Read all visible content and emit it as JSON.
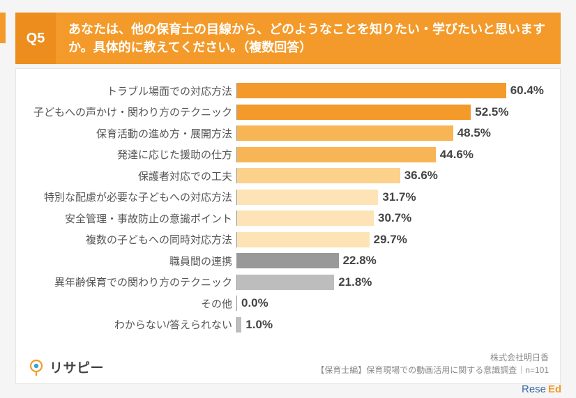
{
  "header": {
    "badge": "Q5",
    "question": "あなたは、他の保育士の目線から、どのようなことを知りたい・学びたいと思いますか。具体的に教えてください。（複数回答）"
  },
  "chart": {
    "type": "bar",
    "orientation": "horizontal",
    "xlim_max": 70,
    "axis_color": "#999999",
    "label_fontsize": 15,
    "label_color": "#555555",
    "value_fontsize": 17,
    "value_color": "#444444",
    "background_color": "#ffffff",
    "color_tiers": {
      "tier1": "#f39a2a",
      "tier2": "#f7b556",
      "tier3": "#fbd18b",
      "tier4": "#fde3b5",
      "tier5": "#999999",
      "tier6": "#bdbdbd"
    },
    "items": [
      {
        "label": "トラブル場面での対応方法",
        "value": 60.4,
        "color": "#f39a2a"
      },
      {
        "label": "子どもへの声かけ・関わり方のテクニック",
        "value": 52.5,
        "color": "#f39a2a"
      },
      {
        "label": "保育活動の進め方・展開方法",
        "value": 48.5,
        "color": "#f7b556"
      },
      {
        "label": "発達に応じた援助の仕方",
        "value": 44.6,
        "color": "#f7b556"
      },
      {
        "label": "保護者対応での工夫",
        "value": 36.6,
        "color": "#fbd18b"
      },
      {
        "label": "特別な配慮が必要な子どもへの対応方法",
        "value": 31.7,
        "color": "#fde3b5"
      },
      {
        "label": "安全管理・事故防止の意識ポイント",
        "value": 30.7,
        "color": "#fde3b5"
      },
      {
        "label": "複数の子どもへの同時対応方法",
        "value": 29.7,
        "color": "#fde3b5"
      },
      {
        "label": "職員間の連携",
        "value": 22.8,
        "color": "#999999"
      },
      {
        "label": "異年齢保育での関わり方のテクニック",
        "value": 21.8,
        "color": "#bdbdbd"
      },
      {
        "label": "その他",
        "value": 0.0,
        "color": "#bdbdbd"
      },
      {
        "label": "わからない/答えられない",
        "value": 1.0,
        "color": "#bdbdbd"
      }
    ]
  },
  "footer": {
    "logo_text": "リサピー",
    "source_line1": "株式会社明日香",
    "source_line2": "【保育士編】保育現場での動画活用に関する意識調査｜n=101",
    "brand_corner": "ReseEd"
  }
}
